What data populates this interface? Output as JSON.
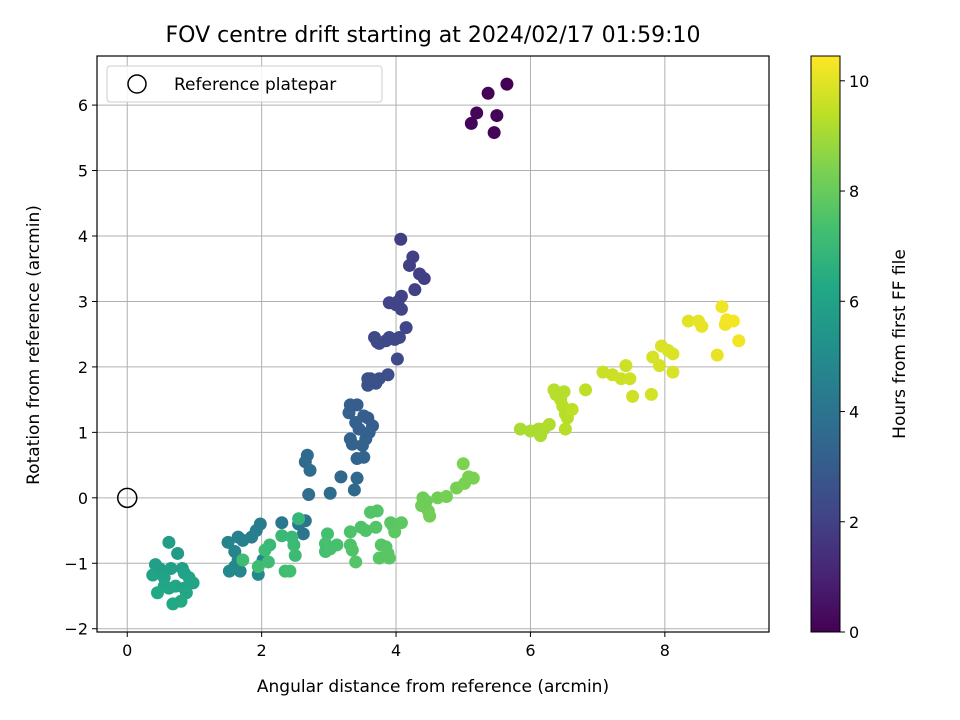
{
  "chart_data": {
    "type": "scatter",
    "title": "FOV centre drift starting at 2024/02/17 01:59:10",
    "xlabel": "Angular distance from reference (arcmin)",
    "ylabel": "Rotation from reference (arcmin)",
    "xlim": [
      -0.45,
      9.55
    ],
    "ylim": [
      -2.05,
      6.75
    ],
    "xticks": [
      0,
      2,
      4,
      6,
      8
    ],
    "yticks": [
      -2,
      -1,
      0,
      1,
      2,
      3,
      4,
      5,
      6
    ],
    "grid": true,
    "legend": {
      "placement": "top-left",
      "entries": [
        "Reference platepar"
      ]
    },
    "reference_point": {
      "x": 0,
      "y": 0
    },
    "colorbar": {
      "label": "Hours from first FF file",
      "range": [
        0,
        10.45
      ],
      "ticks": [
        0,
        2,
        4,
        6,
        8,
        10
      ],
      "colormap": "viridis"
    },
    "points": [
      [
        5.12,
        5.72,
        0.1
      ],
      [
        5.2,
        5.88,
        0.15
      ],
      [
        5.37,
        6.18,
        0.05
      ],
      [
        5.46,
        5.58,
        0.12
      ],
      [
        5.5,
        5.84,
        0.1
      ],
      [
        5.65,
        6.32,
        0.0
      ],
      [
        4.07,
        3.95,
        1.9
      ],
      [
        4.2,
        3.55,
        1.95
      ],
      [
        4.25,
        3.68,
        2.0
      ],
      [
        4.35,
        3.42,
        1.92
      ],
      [
        4.28,
        3.18,
        2.0
      ],
      [
        4.42,
        3.35,
        1.95
      ],
      [
        3.9,
        2.98,
        2.1
      ],
      [
        4.08,
        3.08,
        2.1
      ],
      [
        4.03,
        3.0,
        2.05
      ],
      [
        4.0,
        2.95,
        2.1
      ],
      [
        4.08,
        2.88,
        2.12
      ],
      [
        3.98,
        2.42,
        2.2
      ],
      [
        4.15,
        2.6,
        2.15
      ],
      [
        3.72,
        2.38,
        2.3
      ],
      [
        3.68,
        2.45,
        2.3
      ],
      [
        3.75,
        2.36,
        2.35
      ],
      [
        3.85,
        2.4,
        2.3
      ],
      [
        3.9,
        2.45,
        2.25
      ],
      [
        4.05,
        2.45,
        2.3
      ],
      [
        4.02,
        2.12,
        2.35
      ],
      [
        3.58,
        1.82,
        2.55
      ],
      [
        3.62,
        1.82,
        2.5
      ],
      [
        3.7,
        1.75,
        2.55
      ],
      [
        3.75,
        1.82,
        2.55
      ],
      [
        3.88,
        1.88,
        2.5
      ],
      [
        3.58,
        1.72,
        2.6
      ],
      [
        3.3,
        1.3,
        3.2
      ],
      [
        3.32,
        1.42,
        3.1
      ],
      [
        3.42,
        1.42,
        3.1
      ],
      [
        3.4,
        1.15,
        3.2
      ],
      [
        3.45,
        1.05,
        3.2
      ],
      [
        3.52,
        1.25,
        3.15
      ],
      [
        3.58,
        1.22,
        3.1
      ],
      [
        3.65,
        1.1,
        3.15
      ],
      [
        3.55,
        0.9,
        3.25
      ],
      [
        3.6,
        1.0,
        3.2
      ],
      [
        3.5,
        0.8,
        3.3
      ],
      [
        3.35,
        0.82,
        3.3
      ],
      [
        3.32,
        0.9,
        3.3
      ],
      [
        3.42,
        0.6,
        3.35
      ],
      [
        3.52,
        0.62,
        3.4
      ],
      [
        3.18,
        0.32,
        3.5
      ],
      [
        3.42,
        0.3,
        3.5
      ],
      [
        3.38,
        0.12,
        3.55
      ],
      [
        2.68,
        0.65,
        3.6
      ],
      [
        2.65,
        0.55,
        3.65
      ],
      [
        2.72,
        0.42,
        3.7
      ],
      [
        2.7,
        0.05,
        3.75
      ],
      [
        3.02,
        0.07,
        3.7
      ],
      [
        2.65,
        -0.35,
        4.0
      ],
      [
        2.62,
        -0.55,
        4.1
      ],
      [
        2.3,
        -0.38,
        4.2
      ],
      [
        2.55,
        -0.4,
        4.1
      ],
      [
        1.98,
        -0.4,
        4.3
      ],
      [
        1.92,
        -0.5,
        4.4
      ],
      [
        1.85,
        -0.6,
        4.4
      ],
      [
        1.65,
        -0.6,
        4.6
      ],
      [
        1.72,
        -0.65,
        4.5
      ],
      [
        1.5,
        -0.68,
        4.7
      ],
      [
        1.6,
        -0.82,
        4.7
      ],
      [
        1.65,
        -0.95,
        4.8
      ],
      [
        1.6,
        -1.05,
        4.8
      ],
      [
        1.52,
        -1.12,
        4.9
      ],
      [
        1.68,
        -1.12,
        4.85
      ],
      [
        1.95,
        -1.17,
        4.9
      ],
      [
        2.02,
        -0.95,
        4.8
      ],
      [
        0.62,
        -0.68,
        5.8
      ],
      [
        0.75,
        -0.85,
        5.7
      ],
      [
        0.42,
        -1.02,
        5.9
      ],
      [
        0.48,
        -1.08,
        5.85
      ],
      [
        0.65,
        -1.08,
        5.9
      ],
      [
        0.82,
        -1.08,
        5.85
      ],
      [
        0.38,
        -1.18,
        6.0
      ],
      [
        0.55,
        -1.22,
        6.0
      ],
      [
        0.85,
        -1.15,
        6.0
      ],
      [
        0.92,
        -1.22,
        6.05
      ],
      [
        0.98,
        -1.3,
        6.1
      ],
      [
        0.55,
        -1.35,
        6.1
      ],
      [
        0.72,
        -1.35,
        6.15
      ],
      [
        0.85,
        -1.38,
        6.1
      ],
      [
        0.88,
        -1.45,
        6.2
      ],
      [
        0.62,
        -1.38,
        6.2
      ],
      [
        0.45,
        -1.45,
        6.25
      ],
      [
        0.8,
        -1.58,
        6.3
      ],
      [
        0.68,
        -1.62,
        6.25
      ],
      [
        2.55,
        -0.32,
        6.9
      ],
      [
        2.12,
        -0.72,
        7.0
      ],
      [
        2.05,
        -0.8,
        7.1
      ],
      [
        2.3,
        -0.58,
        7.0
      ],
      [
        2.45,
        -0.6,
        7.0
      ],
      [
        2.48,
        -0.72,
        7.05
      ],
      [
        2.5,
        -0.88,
        7.1
      ],
      [
        1.72,
        -0.95,
        7.2
      ],
      [
        2.1,
        -0.98,
        7.15
      ],
      [
        2.35,
        -1.12,
        7.2
      ],
      [
        2.42,
        -1.12,
        7.25
      ],
      [
        1.95,
        -1.05,
        7.2
      ],
      [
        2.98,
        -0.55,
        7.3
      ],
      [
        2.95,
        -0.7,
        7.35
      ],
      [
        2.95,
        -0.82,
        7.3
      ],
      [
        3.02,
        -0.78,
        7.4
      ],
      [
        3.12,
        -0.72,
        7.35
      ],
      [
        3.32,
        -0.52,
        7.5
      ],
      [
        3.48,
        -0.45,
        7.5
      ],
      [
        3.55,
        -0.5,
        7.55
      ],
      [
        3.62,
        -0.22,
        7.6
      ],
      [
        3.72,
        -0.2,
        7.6
      ],
      [
        3.32,
        -0.72,
        7.5
      ],
      [
        3.35,
        -0.8,
        7.55
      ],
      [
        3.4,
        -0.98,
        7.6
      ],
      [
        3.7,
        -0.45,
        7.6
      ],
      [
        3.78,
        -0.72,
        7.65
      ],
      [
        3.85,
        -0.75,
        7.65
      ],
      [
        3.75,
        -0.92,
        7.7
      ],
      [
        3.9,
        -0.92,
        7.7
      ],
      [
        3.88,
        -0.85,
        7.75
      ],
      [
        3.95,
        -0.42,
        7.75
      ],
      [
        3.98,
        -0.52,
        7.8
      ],
      [
        4.08,
        -0.38,
        7.8
      ],
      [
        3.92,
        -0.38,
        7.75
      ],
      [
        4.4,
        0.0,
        8.1
      ],
      [
        4.45,
        -0.05,
        8.1
      ],
      [
        4.38,
        -0.12,
        8.15
      ],
      [
        4.48,
        -0.2,
        8.15
      ],
      [
        4.5,
        -0.28,
        8.2
      ],
      [
        4.62,
        0.0,
        8.2
      ],
      [
        4.75,
        0.02,
        8.25
      ],
      [
        4.9,
        0.15,
        8.3
      ],
      [
        5.02,
        0.22,
        8.35
      ],
      [
        5.08,
        0.32,
        8.35
      ],
      [
        5.15,
        0.3,
        8.35
      ],
      [
        5.0,
        0.52,
        8.4
      ],
      [
        5.85,
        1.05,
        9.1
      ],
      [
        6.0,
        1.02,
        9.15
      ],
      [
        6.12,
        1.05,
        9.1
      ],
      [
        6.15,
        0.95,
        9.15
      ],
      [
        6.2,
        1.05,
        9.15
      ],
      [
        6.28,
        1.12,
        9.2
      ],
      [
        6.35,
        1.65,
        9.3
      ],
      [
        6.38,
        1.58,
        9.3
      ],
      [
        6.45,
        1.5,
        9.3
      ],
      [
        6.48,
        1.4,
        9.35
      ],
      [
        6.52,
        1.28,
        9.3
      ],
      [
        6.55,
        1.22,
        9.35
      ],
      [
        6.52,
        1.05,
        9.35
      ],
      [
        6.62,
        1.35,
        9.4
      ],
      [
        6.5,
        1.62,
        9.3
      ],
      [
        6.82,
        1.65,
        9.4
      ],
      [
        7.08,
        1.92,
        9.6
      ],
      [
        7.22,
        1.88,
        9.6
      ],
      [
        7.35,
        1.82,
        9.65
      ],
      [
        7.42,
        2.02,
        9.65
      ],
      [
        7.48,
        1.82,
        9.7
      ],
      [
        7.52,
        1.55,
        9.7
      ],
      [
        7.8,
        1.58,
        9.75
      ],
      [
        7.82,
        2.15,
        9.8
      ],
      [
        7.92,
        2.02,
        9.8
      ],
      [
        7.95,
        2.32,
        9.85
      ],
      [
        8.05,
        2.25,
        9.9
      ],
      [
        8.12,
        1.92,
        9.85
      ],
      [
        8.12,
        2.2,
        9.9
      ],
      [
        8.35,
        2.7,
        10.0
      ],
      [
        8.5,
        2.7,
        10.05
      ],
      [
        8.55,
        2.62,
        10.1
      ],
      [
        8.78,
        2.18,
        10.1
      ],
      [
        8.85,
        2.92,
        10.2
      ],
      [
        8.9,
        2.65,
        10.2
      ],
      [
        8.92,
        2.72,
        10.25
      ],
      [
        9.02,
        2.7,
        10.3
      ],
      [
        9.1,
        2.4,
        10.25
      ]
    ]
  }
}
